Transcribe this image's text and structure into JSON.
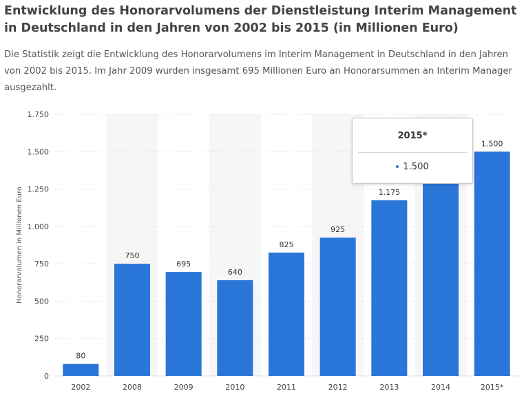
{
  "header": {
    "title": "Entwicklung des Honorarvolumens der Dienstleistung Interim Management in Deutschland in den Jahren von 2002 bis 2015 (in Millionen Euro)",
    "description": "Die Statistik zeigt die Entwicklung des Honorarvolumens im Interim Management in Deutschland in den Jahren von 2002 bis 2015. Im Jahr 2009 wurden insgesamt 695 Millionen Euro an Honorarsummen an Interim Manager ausgezahlt."
  },
  "chart_data": {
    "type": "bar",
    "categories": [
      "2002",
      "2008",
      "2009",
      "2010",
      "2011",
      "2012",
      "2013",
      "2014",
      "2015*"
    ],
    "values": [
      80,
      750,
      695,
      640,
      825,
      925,
      1175,
      1320,
      1500
    ],
    "data_labels": [
      "80",
      "750",
      "695",
      "640",
      "825",
      "925",
      "1.175",
      "",
      "1.500"
    ],
    "xlabel": "",
    "ylabel": "Honorarvolumen in Millionen Euro",
    "ylim": [
      0,
      1750
    ],
    "yticks": [
      0,
      250,
      500,
      750,
      1000,
      1250,
      1500,
      1750
    ],
    "ytick_labels": [
      "0",
      "250",
      "500",
      "750",
      "1.000",
      "1.250",
      "1.500",
      "1.750"
    ],
    "grid": true,
    "bar_color": "#2a75d8",
    "band_color": "#f6f6f6",
    "grid_color": "#dcdcdc"
  },
  "tooltip": {
    "title": "2015*",
    "value": "1.500"
  }
}
